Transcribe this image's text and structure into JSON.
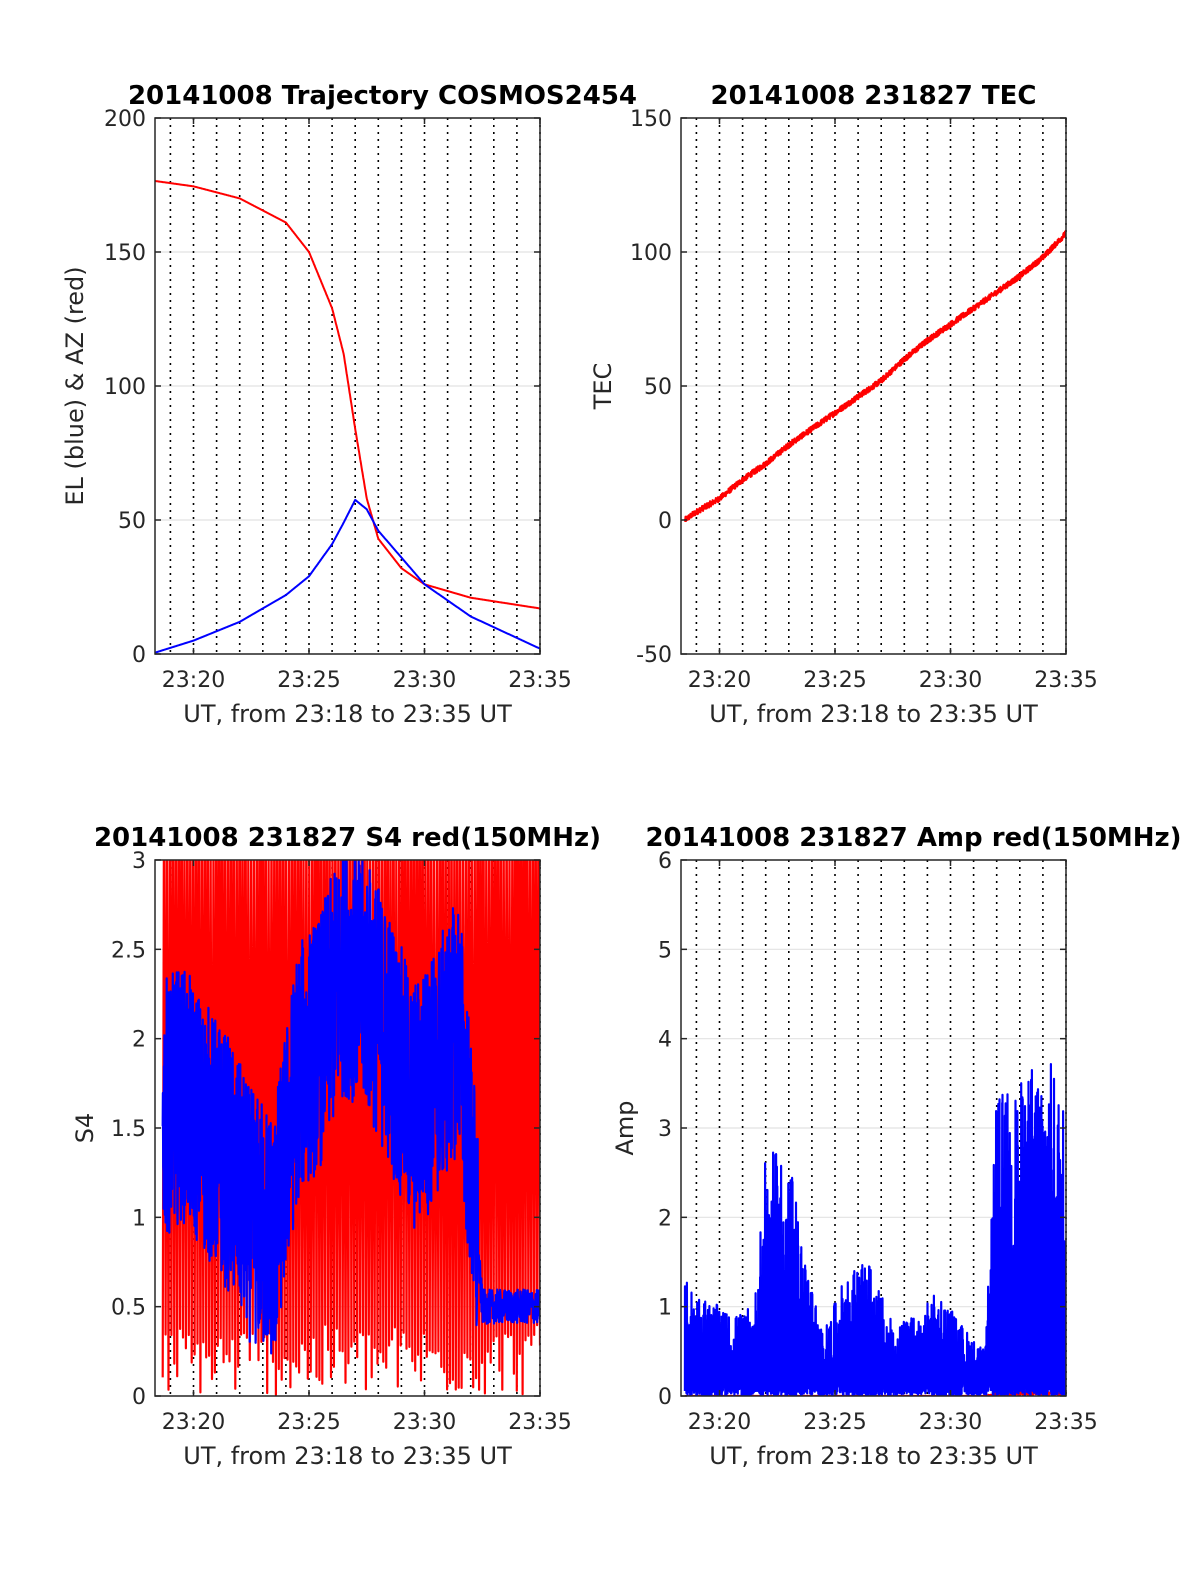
{
  "chart_data": [
    {
      "type": "line",
      "title": "20141008 Trajectory COSMOS2454",
      "xlabel": "UT, from 23:18 to 23:35 UT",
      "ylabel": "EL (blue) & AZ (red)",
      "xlim": [
        "23:18:20",
        "23:35:00"
      ],
      "ylim": [
        0,
        200
      ],
      "x_ticks": [
        "23:20",
        "23:25",
        "23:30",
        "23:35"
      ],
      "y_ticks": [
        "0",
        "50",
        "100",
        "150",
        "200"
      ],
      "grid": true,
      "x": [
        "23:18:20",
        "23:20:00",
        "23:22:00",
        "23:24:00",
        "23:25:00",
        "23:26:00",
        "23:26:30",
        "23:27:00",
        "23:27:30",
        "23:28:00",
        "23:29:00",
        "23:30:00",
        "23:32:00",
        "23:35:00"
      ],
      "series": [
        {
          "color": "#ff0000",
          "values": [
            176.5,
            174.5,
            170,
            161,
            150,
            129,
            112,
            84,
            58,
            43,
            32,
            26,
            21,
            17
          ]
        },
        {
          "color": "#0000ff",
          "values": [
            0.5,
            5,
            12,
            22,
            29,
            41,
            49,
            57.5,
            54,
            46,
            36,
            26,
            14,
            2
          ]
        }
      ]
    },
    {
      "type": "line",
      "title": "20141008 231827 TEC",
      "xlabel": "UT, from 23:18 to 23:35 UT",
      "ylabel": "TEC",
      "xlim": [
        "23:18:20",
        "23:35:00"
      ],
      "ylim": [
        -50,
        150
      ],
      "x_ticks": [
        "23:20",
        "23:25",
        "23:30",
        "23:35"
      ],
      "y_ticks": [
        "-50",
        "0",
        "50",
        "100",
        "150"
      ],
      "grid": true,
      "x": [
        "23:18:30",
        "23:19:00",
        "23:20:00",
        "23:21:00",
        "23:22:00",
        "23:23:00",
        "23:24:00",
        "23:25:00",
        "23:26:00",
        "23:27:00",
        "23:28:00",
        "23:29:00",
        "23:30:00",
        "23:31:00",
        "23:32:00",
        "23:33:00",
        "23:34:00",
        "23:35:00"
      ],
      "series": [
        {
          "color": "#ff0000",
          "values": [
            0,
            3,
            8,
            15,
            21,
            28,
            34,
            40,
            46,
            52,
            60,
            67,
            73,
            79,
            85,
            91,
            98,
            107
          ]
        }
      ]
    },
    {
      "type": "line",
      "title": "20141008 231827 S4 red(150MHz)",
      "xlabel": "UT, from 23:18 to 23:35 UT",
      "ylabel": "S4",
      "xlim": [
        "23:18:20",
        "23:35:00"
      ],
      "ylim": [
        0,
        3
      ],
      "x_ticks": [
        "23:20",
        "23:25",
        "23:30",
        "23:35"
      ],
      "y_ticks": [
        "0",
        "0.5",
        "1",
        "1.5",
        "2",
        "2.5",
        "3"
      ],
      "grid": true,
      "x": [
        "23:18:40",
        "23:19:30",
        "23:20:30",
        "23:21:30",
        "23:22:30",
        "23:23:30",
        "23:24:30",
        "23:25:30",
        "23:26:30",
        "23:27:30",
        "23:28:30",
        "23:29:30",
        "23:30:30",
        "23:31:30",
        "23:32:30",
        "23:33:30",
        "23:34:30",
        "23:35:00"
      ],
      "series": [
        {
          "color": "#ff0000",
          "values": [
            3,
            0,
            3,
            0,
            3,
            0,
            3,
            0,
            3,
            0,
            3,
            0,
            3,
            0,
            3,
            0,
            3,
            0
          ]
        },
        {
          "color": "#0000ff",
          "values": [
            1.6,
            1.7,
            1.5,
            1.3,
            1.0,
            0.9,
            1.8,
            2.0,
            2.4,
            2.3,
            2.0,
            1.6,
            1.8,
            2.1,
            0.5,
            0.5,
            0.5,
            0.5
          ]
        }
      ]
    },
    {
      "type": "line",
      "title": "20141008 231827 Amp red(150MHz)",
      "xlabel": "UT, from 23:18 to 23:35 UT",
      "ylabel": "Amp",
      "xlim": [
        "23:18:20",
        "23:35:00"
      ],
      "ylim": [
        0,
        6
      ],
      "x_ticks": [
        "23:20",
        "23:25",
        "23:30",
        "23:35"
      ],
      "y_ticks": [
        "0",
        "1",
        "2",
        "3",
        "4",
        "5",
        "6"
      ],
      "grid": true,
      "x": [
        "23:18:30",
        "23:19:30",
        "23:20:30",
        "23:21:30",
        "23:22:00",
        "23:23:00",
        "23:23:30",
        "23:24:30",
        "23:25:30",
        "23:26:30",
        "23:27:30",
        "23:28:30",
        "23:29:30",
        "23:30:30",
        "23:31:30",
        "23:32:00",
        "23:33:00",
        "23:34:00",
        "23:35:00"
      ],
      "series": [
        {
          "color": "#ff0000",
          "values": [
            0,
            0,
            0,
            0,
            0,
            0,
            0,
            0,
            0,
            0,
            0,
            0,
            0,
            0,
            0,
            0.03,
            0.05,
            0.04,
            0.05
          ]
        },
        {
          "color": "#0000ff",
          "values": [
            1.3,
            1.1,
            0.9,
            1.0,
            2.7,
            2.8,
            1.8,
            0.7,
            1.4,
            1.5,
            0.8,
            0.9,
            1.2,
            0.8,
            0.5,
            3.4,
            3.5,
            4.0,
            3.3
          ]
        }
      ]
    }
  ]
}
